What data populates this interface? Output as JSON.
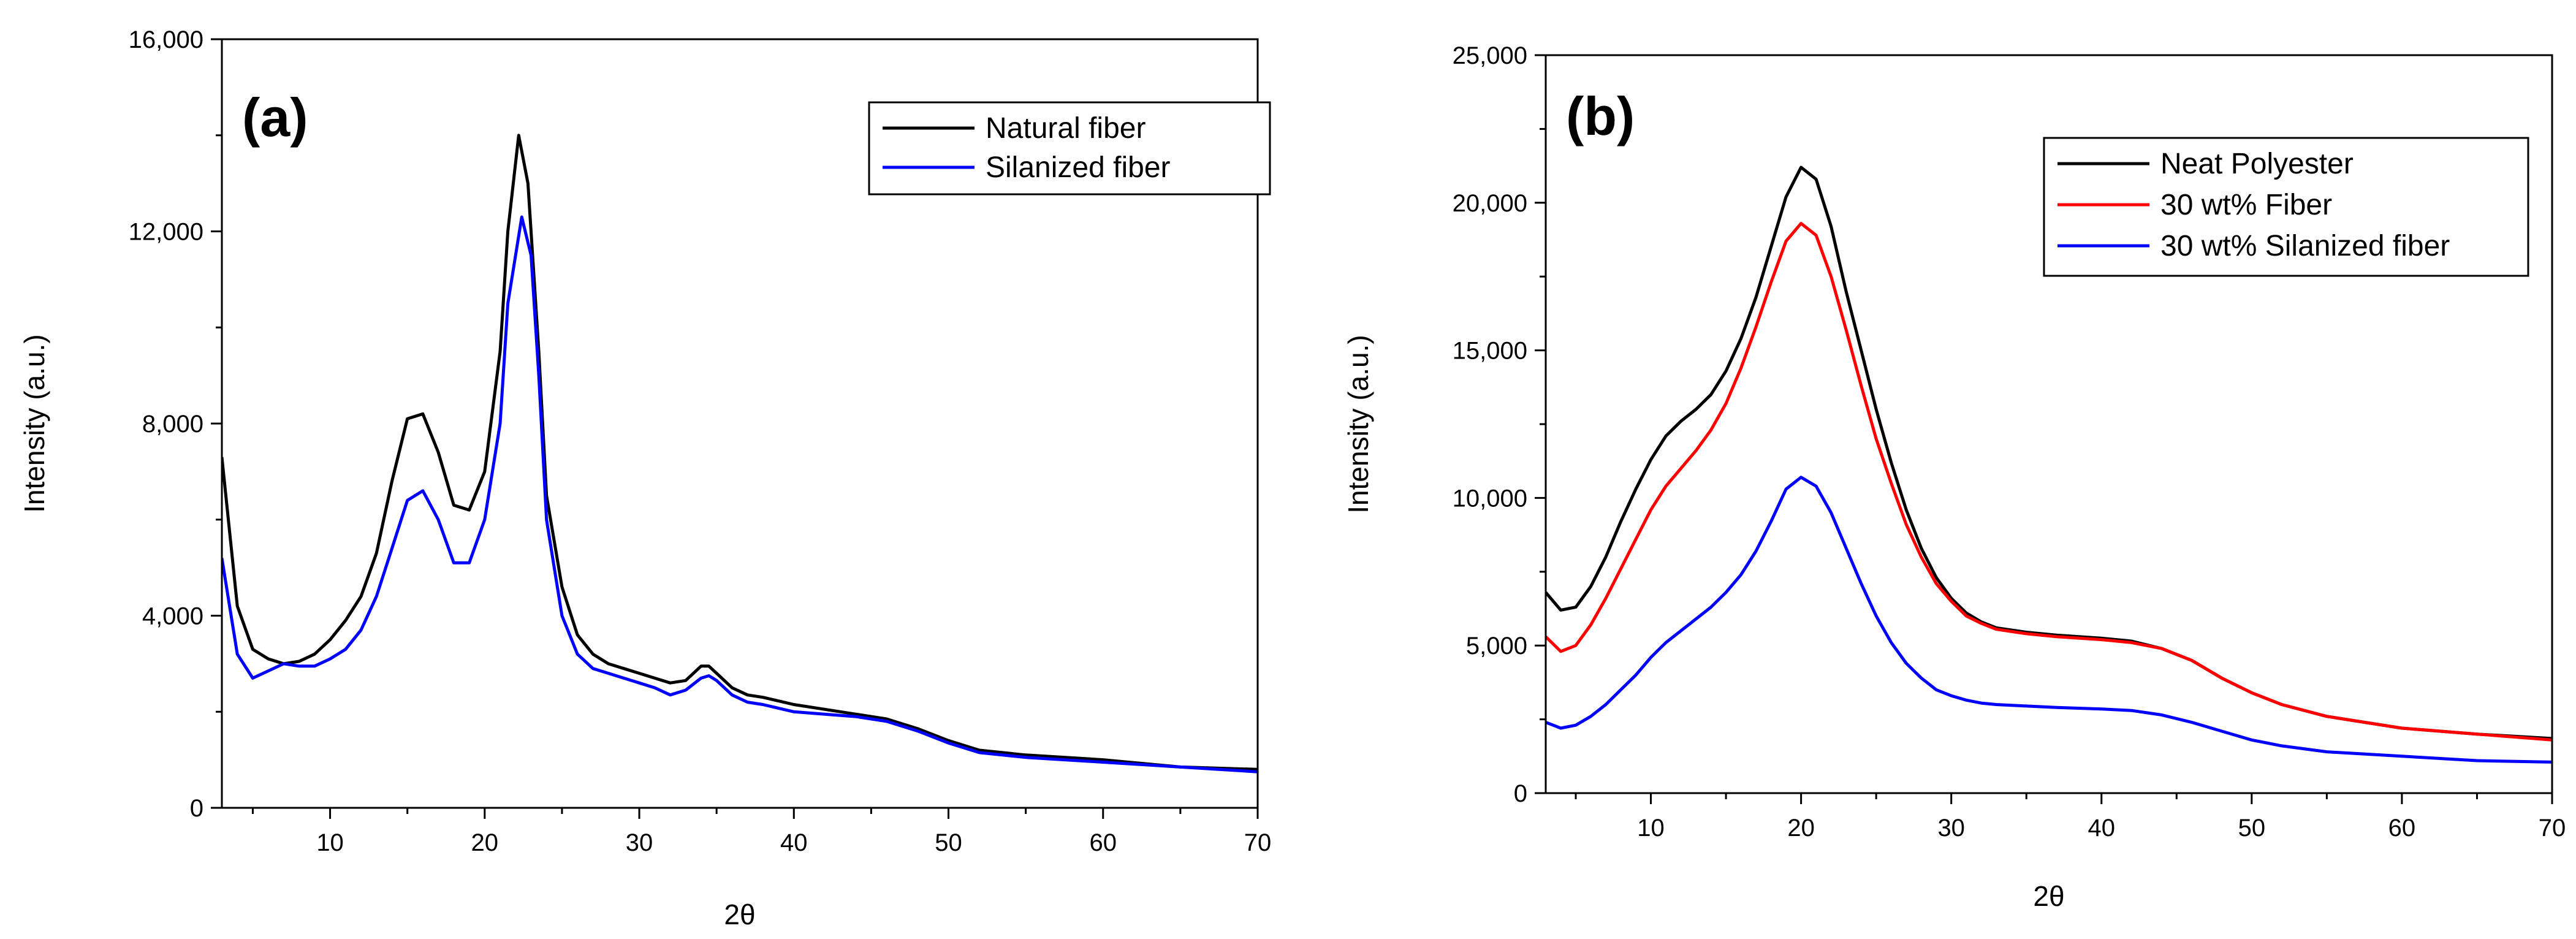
{
  "chart_data": [
    {
      "type": "line",
      "panel_label": "(a)",
      "xlabel": "2θ",
      "ylabel": "Intensity (a.u.)",
      "xlim": [
        3,
        70
      ],
      "ylim": [
        0,
        16000
      ],
      "xticks": [
        10,
        20,
        30,
        40,
        50,
        60,
        70
      ],
      "yticks": [
        0,
        4000,
        8000,
        12000,
        16000
      ],
      "ytick_labels": [
        "0",
        "4,000",
        "8,000",
        "12,000",
        "16,000"
      ],
      "legend_position": "top-right",
      "series": [
        {
          "name": "Natural fiber",
          "color": "#000000",
          "points": [
            [
              3,
              7300
            ],
            [
              4,
              4200
            ],
            [
              5,
              3300
            ],
            [
              6,
              3100
            ],
            [
              7,
              3000
            ],
            [
              8,
              3050
            ],
            [
              9,
              3200
            ],
            [
              10,
              3500
            ],
            [
              11,
              3900
            ],
            [
              12,
              4400
            ],
            [
              13,
              5300
            ],
            [
              14,
              6800
            ],
            [
              15,
              8100
            ],
            [
              16,
              8200
            ],
            [
              17,
              7400
            ],
            [
              18,
              6300
            ],
            [
              19,
              6200
            ],
            [
              20,
              7000
            ],
            [
              21,
              9500
            ],
            [
              21.5,
              12000
            ],
            [
              22.2,
              14000
            ],
            [
              22.8,
              13000
            ],
            [
              23.5,
              9500
            ],
            [
              24,
              6500
            ],
            [
              25,
              4600
            ],
            [
              26,
              3600
            ],
            [
              27,
              3200
            ],
            [
              28,
              3000
            ],
            [
              29,
              2900
            ],
            [
              30,
              2800
            ],
            [
              31,
              2700
            ],
            [
              32,
              2600
            ],
            [
              33,
              2650
            ],
            [
              34,
              2950
            ],
            [
              34.5,
              2950
            ],
            [
              35,
              2800
            ],
            [
              36,
              2500
            ],
            [
              37,
              2350
            ],
            [
              38,
              2300
            ],
            [
              40,
              2150
            ],
            [
              42,
              2050
            ],
            [
              44,
              1950
            ],
            [
              46,
              1850
            ],
            [
              48,
              1650
            ],
            [
              50,
              1400
            ],
            [
              52,
              1200
            ],
            [
              55,
              1100
            ],
            [
              60,
              1000
            ],
            [
              65,
              850
            ],
            [
              70,
              800
            ]
          ]
        },
        {
          "name": "Silanized fiber",
          "color": "#0000ff",
          "points": [
            [
              3,
              5200
            ],
            [
              4,
              3200
            ],
            [
              5,
              2700
            ],
            [
              6,
              2850
            ],
            [
              7,
              3000
            ],
            [
              8,
              2950
            ],
            [
              9,
              2950
            ],
            [
              10,
              3100
            ],
            [
              11,
              3300
            ],
            [
              12,
              3700
            ],
            [
              13,
              4400
            ],
            [
              14,
              5400
            ],
            [
              15,
              6400
            ],
            [
              16,
              6600
            ],
            [
              17,
              6000
            ],
            [
              18,
              5100
            ],
            [
              19,
              5100
            ],
            [
              20,
              6000
            ],
            [
              21,
              8000
            ],
            [
              21.5,
              10500
            ],
            [
              22.4,
              12300
            ],
            [
              23,
              11500
            ],
            [
              23.5,
              9000
            ],
            [
              24,
              6000
            ],
            [
              25,
              4000
            ],
            [
              26,
              3200
            ],
            [
              27,
              2900
            ],
            [
              28,
              2800
            ],
            [
              29,
              2700
            ],
            [
              30,
              2600
            ],
            [
              31,
              2500
            ],
            [
              32,
              2350
            ],
            [
              33,
              2450
            ],
            [
              34,
              2700
            ],
            [
              34.5,
              2750
            ],
            [
              35,
              2650
            ],
            [
              36,
              2350
            ],
            [
              37,
              2200
            ],
            [
              38,
              2150
            ],
            [
              40,
              2000
            ],
            [
              42,
              1950
            ],
            [
              44,
              1900
            ],
            [
              46,
              1800
            ],
            [
              48,
              1600
            ],
            [
              50,
              1350
            ],
            [
              52,
              1150
            ],
            [
              55,
              1050
            ],
            [
              60,
              950
            ],
            [
              65,
              850
            ],
            [
              70,
              750
            ]
          ]
        }
      ]
    },
    {
      "type": "line",
      "panel_label": "(b)",
      "xlabel": "2θ",
      "ylabel": "Intensity (a.u.)",
      "xlim": [
        3,
        70
      ],
      "ylim": [
        0,
        25000
      ],
      "xticks": [
        10,
        20,
        30,
        40,
        50,
        60,
        70
      ],
      "yticks": [
        0,
        5000,
        10000,
        15000,
        20000,
        25000
      ],
      "ytick_labels": [
        "0",
        "5,000",
        "10,000",
        "15,000",
        "20,000",
        "25,000"
      ],
      "legend_position": "top-right",
      "series": [
        {
          "name": "Neat Polyester",
          "color": "#000000",
          "points": [
            [
              3,
              6800
            ],
            [
              4,
              6200
            ],
            [
              5,
              6300
            ],
            [
              6,
              7000
            ],
            [
              7,
              8000
            ],
            [
              8,
              9200
            ],
            [
              9,
              10300
            ],
            [
              10,
              11300
            ],
            [
              11,
              12100
            ],
            [
              12,
              12600
            ],
            [
              13,
              13000
            ],
            [
              14,
              13500
            ],
            [
              15,
              14300
            ],
            [
              16,
              15400
            ],
            [
              17,
              16800
            ],
            [
              18,
              18500
            ],
            [
              19,
              20200
            ],
            [
              20,
              21200
            ],
            [
              21,
              20800
            ],
            [
              22,
              19200
            ],
            [
              23,
              17000
            ],
            [
              24,
              15000
            ],
            [
              25,
              13000
            ],
            [
              26,
              11200
            ],
            [
              27,
              9600
            ],
            [
              28,
              8300
            ],
            [
              29,
              7300
            ],
            [
              30,
              6600
            ],
            [
              31,
              6100
            ],
            [
              32,
              5800
            ],
            [
              33,
              5600
            ],
            [
              35,
              5450
            ],
            [
              37,
              5350
            ],
            [
              40,
              5250
            ],
            [
              42,
              5150
            ],
            [
              44,
              4900
            ],
            [
              46,
              4500
            ],
            [
              48,
              3900
            ],
            [
              50,
              3400
            ],
            [
              52,
              3000
            ],
            [
              55,
              2600
            ],
            [
              60,
              2200
            ],
            [
              65,
              2000
            ],
            [
              70,
              1850
            ]
          ]
        },
        {
          "name": "30 wt% Fiber",
          "color": "#ff0000",
          "points": [
            [
              3,
              5300
            ],
            [
              4,
              4800
            ],
            [
              5,
              5000
            ],
            [
              6,
              5700
            ],
            [
              7,
              6600
            ],
            [
              8,
              7600
            ],
            [
              9,
              8600
            ],
            [
              10,
              9600
            ],
            [
              11,
              10400
            ],
            [
              12,
              11000
            ],
            [
              13,
              11600
            ],
            [
              14,
              12300
            ],
            [
              15,
              13200
            ],
            [
              16,
              14400
            ],
            [
              17,
              15800
            ],
            [
              18,
              17300
            ],
            [
              19,
              18700
            ],
            [
              20,
              19300
            ],
            [
              21,
              18900
            ],
            [
              22,
              17500
            ],
            [
              23,
              15700
            ],
            [
              24,
              13800
            ],
            [
              25,
              12000
            ],
            [
              26,
              10500
            ],
            [
              27,
              9100
            ],
            [
              28,
              8000
            ],
            [
              29,
              7100
            ],
            [
              30,
              6500
            ],
            [
              31,
              6000
            ],
            [
              32,
              5750
            ],
            [
              33,
              5550
            ],
            [
              35,
              5400
            ],
            [
              37,
              5300
            ],
            [
              40,
              5200
            ],
            [
              42,
              5100
            ],
            [
              44,
              4900
            ],
            [
              46,
              4500
            ],
            [
              48,
              3900
            ],
            [
              50,
              3400
            ],
            [
              52,
              3000
            ],
            [
              55,
              2600
            ],
            [
              60,
              2200
            ],
            [
              65,
              2000
            ],
            [
              70,
              1800
            ]
          ]
        },
        {
          "name": "30 wt% Silanized fiber",
          "color": "#0000ff",
          "points": [
            [
              3,
              2400
            ],
            [
              4,
              2200
            ],
            [
              5,
              2300
            ],
            [
              6,
              2600
            ],
            [
              7,
              3000
            ],
            [
              8,
              3500
            ],
            [
              9,
              4000
            ],
            [
              10,
              4600
            ],
            [
              11,
              5100
            ],
            [
              12,
              5500
            ],
            [
              13,
              5900
            ],
            [
              14,
              6300
            ],
            [
              15,
              6800
            ],
            [
              16,
              7400
            ],
            [
              17,
              8200
            ],
            [
              18,
              9200
            ],
            [
              19,
              10300
            ],
            [
              20,
              10700
            ],
            [
              21,
              10400
            ],
            [
              22,
              9500
            ],
            [
              23,
              8300
            ],
            [
              24,
              7100
            ],
            [
              25,
              6000
            ],
            [
              26,
              5100
            ],
            [
              27,
              4400
            ],
            [
              28,
              3900
            ],
            [
              29,
              3500
            ],
            [
              30,
              3300
            ],
            [
              31,
              3150
            ],
            [
              32,
              3050
            ],
            [
              33,
              3000
            ],
            [
              35,
              2950
            ],
            [
              37,
              2900
            ],
            [
              40,
              2850
            ],
            [
              42,
              2800
            ],
            [
              44,
              2650
            ],
            [
              46,
              2400
            ],
            [
              48,
              2100
            ],
            [
              50,
              1800
            ],
            [
              52,
              1600
            ],
            [
              55,
              1400
            ],
            [
              60,
              1250
            ],
            [
              65,
              1100
            ],
            [
              70,
              1050
            ]
          ]
        }
      ]
    }
  ]
}
